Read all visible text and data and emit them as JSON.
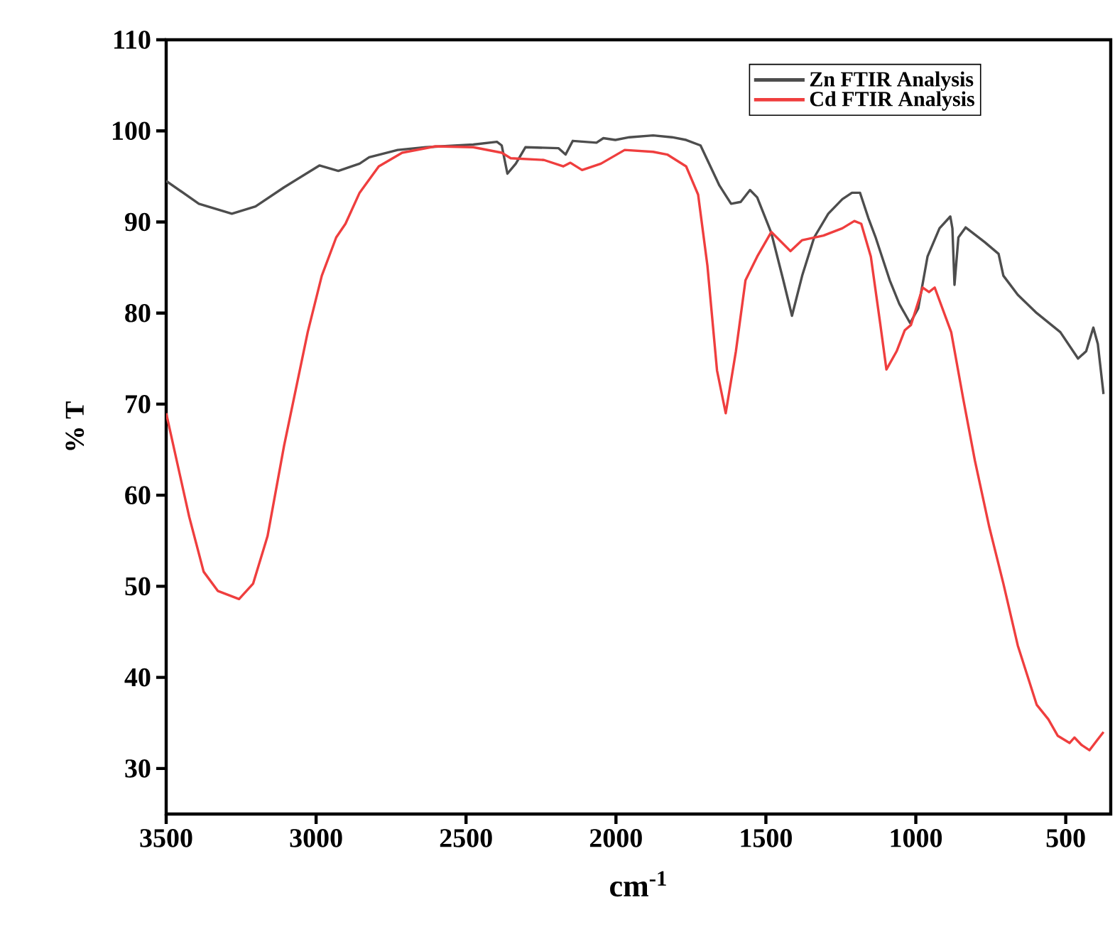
{
  "chart_data": {
    "type": "line",
    "xlabel": "cm$^{-1}$",
    "ylabel": "% T",
    "xlim": [
      3500,
      350
    ],
    "ylim": [
      25,
      110
    ],
    "xticks": [
      3500,
      3000,
      2500,
      2000,
      1500,
      1000,
      500
    ],
    "yticks": [
      30,
      40,
      50,
      60,
      70,
      80,
      90,
      100,
      110
    ],
    "legend": "top right",
    "grid": false,
    "marker": "none",
    "line_style": "solid",
    "series": [
      {
        "name": "Zn FTIR Analysis",
        "color": "#4d4d4d",
        "x": [
          3500,
          3391,
          3281,
          3202,
          3107,
          2989,
          2926,
          2855,
          2823,
          2728,
          2634,
          2476,
          2397,
          2381,
          2362,
          2334,
          2302,
          2192,
          2168,
          2144,
          2065,
          2042,
          2002,
          1955,
          1876,
          1813,
          1766,
          1718,
          1655,
          1616,
          1584,
          1553,
          1529,
          1482,
          1442,
          1413,
          1379,
          1339,
          1292,
          1245,
          1213,
          1186,
          1158,
          1134,
          1087,
          1055,
          1019,
          992,
          961,
          921,
          885,
          878,
          871,
          858,
          834,
          771,
          724,
          708,
          660,
          597,
          518,
          459,
          432,
          408,
          393,
          374
        ],
        "values": [
          94.5,
          92.0,
          90.9,
          91.7,
          93.8,
          96.2,
          95.6,
          96.4,
          97.1,
          97.9,
          98.2,
          98.5,
          98.8,
          98.4,
          95.3,
          96.4,
          98.2,
          98.1,
          97.4,
          98.9,
          98.7,
          99.2,
          99.0,
          99.3,
          99.5,
          99.3,
          99.0,
          98.4,
          94.0,
          92.0,
          92.2,
          93.5,
          92.7,
          88.8,
          83.6,
          79.7,
          84.1,
          88.3,
          90.9,
          92.5,
          93.2,
          93.2,
          90.4,
          88.3,
          83.6,
          81.0,
          78.9,
          80.5,
          86.2,
          89.3,
          90.6,
          89.3,
          83.1,
          88.3,
          89.4,
          87.8,
          86.5,
          84.1,
          82.0,
          80.0,
          77.9,
          75.0,
          75.8,
          78.4,
          76.6,
          71.1
        ]
      },
      {
        "name": "Cd FTIR Analysis",
        "color": "#ef3e3e",
        "x": [
          3500,
          3423,
          3375,
          3328,
          3257,
          3210,
          3162,
          3107,
          3028,
          2981,
          2933,
          2902,
          2855,
          2791,
          2713,
          2602,
          2476,
          2381,
          2351,
          2240,
          2176,
          2152,
          2113,
          2050,
          1971,
          1876,
          1829,
          1766,
          1726,
          1695,
          1663,
          1634,
          1600,
          1568,
          1529,
          1482,
          1418,
          1379,
          1308,
          1245,
          1205,
          1182,
          1150,
          1119,
          1098,
          1064,
          1037,
          1016,
          977,
          956,
          937,
          882,
          842,
          803,
          755,
          708,
          660,
          597,
          558,
          527,
          487,
          471,
          448,
          421,
          393,
          374
        ],
        "values": [
          69.0,
          57.6,
          51.6,
          49.5,
          48.6,
          50.3,
          55.5,
          65.4,
          77.9,
          84.1,
          88.3,
          89.8,
          93.2,
          96.1,
          97.6,
          98.3,
          98.2,
          97.6,
          97.0,
          96.8,
          96.1,
          96.5,
          95.7,
          96.4,
          97.9,
          97.7,
          97.4,
          96.1,
          93.0,
          85.2,
          73.7,
          69.0,
          75.8,
          83.6,
          86.2,
          88.9,
          86.8,
          88.0,
          88.5,
          89.3,
          90.1,
          89.8,
          86.2,
          78.9,
          73.8,
          75.8,
          78.1,
          78.7,
          82.8,
          82.3,
          82.8,
          77.9,
          70.6,
          63.8,
          56.5,
          50.3,
          43.5,
          37.0,
          35.4,
          33.6,
          32.8,
          33.4,
          32.6,
          32.0,
          33.2,
          34.0
        ]
      }
    ]
  }
}
